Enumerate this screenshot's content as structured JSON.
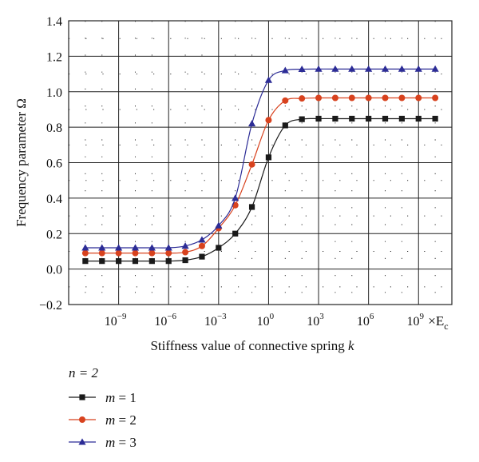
{
  "chart_data": {
    "type": "line",
    "xscale": "log10",
    "x": [
      1e-11,
      1e-10,
      1e-09,
      1e-08,
      1e-07,
      1e-06,
      1e-05,
      0.0001,
      0.001,
      0.01,
      0.1,
      1.0,
      10.0,
      100.0,
      1000.0,
      10000.0,
      100000.0,
      1000000.0,
      10000000.0,
      100000000.0,
      1000000000.0,
      10000000000.0
    ],
    "xlim": [
      1e-12,
      100000000000.0
    ],
    "ylim": [
      -0.2,
      1.4
    ],
    "xlabel": "Stiffness value of connective spring ",
    "xlabel_var": "k",
    "ylabel": "Frequency parameter Ω",
    "x_unit": "×E",
    "x_unit_sub": "c",
    "x_ticks": [
      {
        "exp": -9,
        "base": "10",
        "sup": "−9"
      },
      {
        "exp": -6,
        "base": "10",
        "sup": "−6"
      },
      {
        "exp": -3,
        "base": "10",
        "sup": "−3"
      },
      {
        "exp": 0,
        "base": "10",
        "sup": "0"
      },
      {
        "exp": 3,
        "base": "10",
        "sup": "3"
      },
      {
        "exp": 6,
        "base": "10",
        "sup": "6"
      },
      {
        "exp": 9,
        "base": "10",
        "sup": "9"
      }
    ],
    "y_ticks": [
      {
        "v": -0.2,
        "label": "−0.2"
      },
      {
        "v": 0.0,
        "label": "0.0"
      },
      {
        "v": 0.2,
        "label": "0.2"
      },
      {
        "v": 0.4,
        "label": "0.4"
      },
      {
        "v": 0.6,
        "label": "0.6"
      },
      {
        "v": 0.8,
        "label": "0.8"
      },
      {
        "v": 1.0,
        "label": "1.0"
      },
      {
        "v": 1.2,
        "label": "1.2"
      },
      {
        "v": 1.4,
        "label": "1.4"
      }
    ],
    "grid": true,
    "legend_title": "n = 2",
    "legend_position": "bottom-left",
    "series": [
      {
        "name": "m = 1",
        "var": "m",
        "eq": " = 1",
        "color": "#1a1a1a",
        "marker": "square",
        "values": [
          0.045,
          0.045,
          0.045,
          0.045,
          0.045,
          0.045,
          0.05,
          0.07,
          0.12,
          0.2,
          0.35,
          0.63,
          0.81,
          0.845,
          0.848,
          0.848,
          0.848,
          0.848,
          0.848,
          0.848,
          0.848,
          0.848
        ]
      },
      {
        "name": "m = 2",
        "var": "m",
        "eq": " = 2",
        "color": "#d8421e",
        "marker": "circle",
        "values": [
          0.09,
          0.09,
          0.09,
          0.09,
          0.09,
          0.09,
          0.095,
          0.13,
          0.23,
          0.36,
          0.59,
          0.84,
          0.95,
          0.962,
          0.965,
          0.965,
          0.965,
          0.965,
          0.965,
          0.965,
          0.965,
          0.965
        ]
      },
      {
        "name": "m = 3",
        "var": "m",
        "eq": " = 3",
        "color": "#2c2c96",
        "marker": "triangle",
        "values": [
          0.12,
          0.12,
          0.12,
          0.12,
          0.12,
          0.12,
          0.13,
          0.165,
          0.245,
          0.4,
          0.82,
          1.065,
          1.12,
          1.127,
          1.128,
          1.128,
          1.128,
          1.128,
          1.128,
          1.128,
          1.128,
          1.128
        ]
      }
    ]
  }
}
